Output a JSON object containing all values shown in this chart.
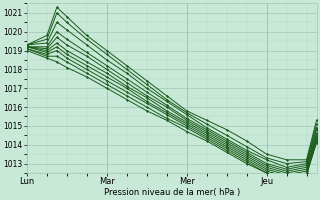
{
  "xlabel": "Pression niveau de la mer( hPa )",
  "ylim": [
    1012.5,
    1021.5
  ],
  "yticks": [
    1013,
    1014,
    1015,
    1016,
    1017,
    1018,
    1019,
    1020,
    1021
  ],
  "xtick_labels": [
    "Lun",
    "Mar",
    "Mer",
    "Jeu"
  ],
  "xtick_positions": [
    0,
    24,
    48,
    72
  ],
  "xlim": [
    0,
    87
  ],
  "bg_color": "#c8e8d8",
  "grid_color_major": "#a0c8b8",
  "grid_color_minor": "#b8d8c8",
  "line_color": "#1a5c1a",
  "line_width": 0.7,
  "series": [
    {
      "x": [
        0,
        6,
        9,
        12,
        18,
        24,
        30,
        36,
        42,
        48,
        54,
        60,
        66,
        72,
        78,
        84,
        87
      ],
      "y": [
        1019.3,
        1019.8,
        1021.3,
        1020.8,
        1019.8,
        1019.0,
        1018.2,
        1017.4,
        1016.6,
        1015.8,
        1015.3,
        1014.8,
        1014.2,
        1013.5,
        1013.2,
        1013.2,
        1015.3
      ]
    },
    {
      "x": [
        0,
        6,
        9,
        12,
        18,
        24,
        30,
        36,
        42,
        48,
        54,
        60,
        66,
        72,
        78,
        84,
        87
      ],
      "y": [
        1019.3,
        1019.6,
        1021.0,
        1020.5,
        1019.6,
        1018.8,
        1018.0,
        1017.2,
        1016.4,
        1015.7,
        1015.1,
        1014.5,
        1013.9,
        1013.3,
        1013.0,
        1013.1,
        1015.1
      ]
    },
    {
      "x": [
        0,
        6,
        9,
        12,
        18,
        24,
        30,
        36,
        42,
        48,
        54,
        60,
        66,
        72,
        78,
        84,
        87
      ],
      "y": [
        1019.3,
        1019.4,
        1020.5,
        1020.1,
        1019.3,
        1018.5,
        1017.8,
        1017.0,
        1016.3,
        1015.6,
        1014.9,
        1014.3,
        1013.7,
        1013.2,
        1012.8,
        1013.0,
        1014.9
      ]
    },
    {
      "x": [
        0,
        6,
        9,
        12,
        18,
        24,
        30,
        36,
        42,
        48,
        54,
        60,
        66,
        72,
        78,
        84,
        87
      ],
      "y": [
        1019.2,
        1019.2,
        1020.0,
        1019.6,
        1018.9,
        1018.2,
        1017.5,
        1016.8,
        1016.1,
        1015.4,
        1014.8,
        1014.2,
        1013.6,
        1013.0,
        1012.7,
        1012.9,
        1014.8
      ]
    },
    {
      "x": [
        0,
        6,
        9,
        12,
        18,
        24,
        30,
        36,
        42,
        48,
        54,
        60,
        66,
        72,
        78,
        84,
        87
      ],
      "y": [
        1019.2,
        1019.1,
        1019.7,
        1019.3,
        1018.7,
        1018.0,
        1017.3,
        1016.6,
        1016.0,
        1015.3,
        1014.7,
        1014.1,
        1013.5,
        1012.9,
        1012.6,
        1012.8,
        1014.6
      ]
    },
    {
      "x": [
        0,
        6,
        9,
        12,
        18,
        24,
        30,
        36,
        42,
        48,
        54,
        60,
        66,
        72,
        78,
        84,
        87
      ],
      "y": [
        1019.2,
        1019.0,
        1019.4,
        1019.0,
        1018.4,
        1017.8,
        1017.1,
        1016.5,
        1015.8,
        1015.2,
        1014.6,
        1014.0,
        1013.4,
        1012.8,
        1012.5,
        1012.7,
        1014.5
      ]
    },
    {
      "x": [
        0,
        6,
        9,
        12,
        18,
        24,
        30,
        36,
        42,
        48,
        54,
        60,
        66,
        72,
        78,
        84,
        87
      ],
      "y": [
        1019.2,
        1018.9,
        1019.2,
        1018.8,
        1018.2,
        1017.6,
        1017.0,
        1016.3,
        1015.7,
        1015.1,
        1014.5,
        1013.9,
        1013.3,
        1012.7,
        1012.4,
        1012.6,
        1014.4
      ]
    },
    {
      "x": [
        0,
        6,
        9,
        12,
        18,
        24,
        30,
        36,
        42,
        48,
        54,
        60,
        66,
        72,
        78,
        84,
        87
      ],
      "y": [
        1019.1,
        1018.8,
        1019.0,
        1018.6,
        1018.0,
        1017.4,
        1016.8,
        1016.2,
        1015.6,
        1015.0,
        1014.4,
        1013.8,
        1013.2,
        1012.6,
        1012.3,
        1012.5,
        1014.3
      ]
    },
    {
      "x": [
        0,
        6,
        9,
        12,
        18,
        24,
        30,
        36,
        42,
        48,
        54,
        60,
        66,
        72,
        78,
        84,
        87
      ],
      "y": [
        1019.1,
        1018.7,
        1018.7,
        1018.4,
        1017.8,
        1017.2,
        1016.6,
        1016.0,
        1015.4,
        1014.9,
        1014.3,
        1013.7,
        1013.1,
        1012.5,
        1012.2,
        1012.4,
        1014.2
      ]
    },
    {
      "x": [
        0,
        6,
        9,
        12,
        18,
        24,
        30,
        36,
        42,
        48,
        54,
        60,
        66,
        72,
        78,
        84,
        87
      ],
      "y": [
        1019.0,
        1018.6,
        1018.4,
        1018.1,
        1017.6,
        1017.0,
        1016.4,
        1015.8,
        1015.3,
        1014.7,
        1014.2,
        1013.6,
        1013.0,
        1012.5,
        1012.2,
        1012.4,
        1014.1
      ]
    }
  ]
}
